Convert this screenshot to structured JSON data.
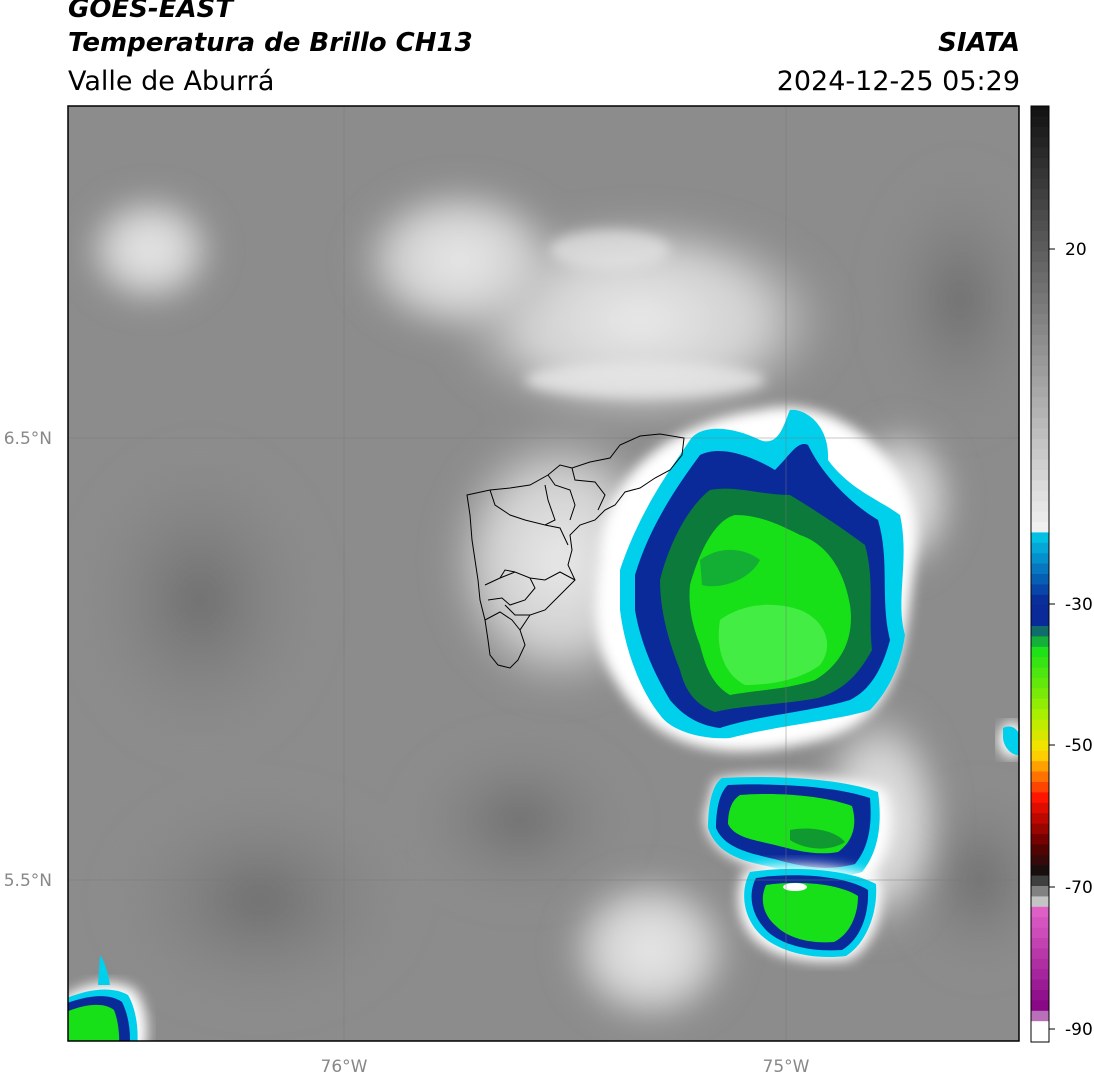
{
  "header": {
    "satellite": "GOES-EAST",
    "product": "Temperatura de Brillo CH13",
    "region": "Valle de Aburrá",
    "organization": "SIATA",
    "datetime": "2024-12-25 05:29"
  },
  "map": {
    "lat_labels": [
      "6.5°N",
      "5.5°N"
    ],
    "lon_labels": [
      "76°W",
      "75°W"
    ],
    "colorbar": {
      "ticks": [
        "20",
        "-30",
        "-50",
        "-70",
        "-90"
      ],
      "colors": {
        "gray_high": "#111111",
        "gray_low": "#f0f0f0",
        "cyan": "#00d8f0",
        "blue": "#0a2a9a",
        "green": "#18e018",
        "lime": "#a8f000",
        "yellow": "#ffe000",
        "red": "#ff1000",
        "dark_red": "#600000",
        "magenta": "#e060c8",
        "purple": "#800080"
      }
    }
  }
}
